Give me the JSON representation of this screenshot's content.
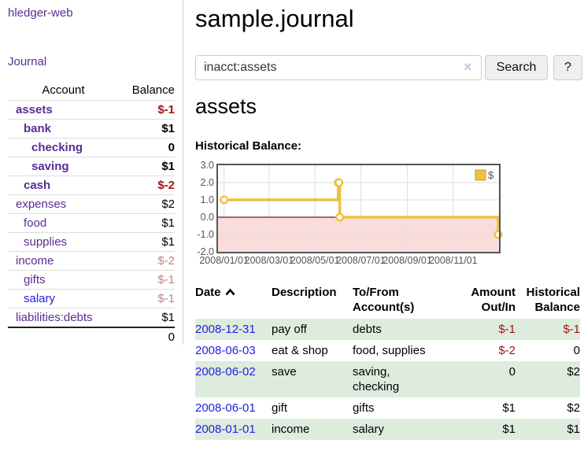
{
  "colors": {
    "link_purple": "#5a2d91",
    "link_blue": "#2222dd",
    "negative_strong": "#a21313",
    "negative_soft": "#c28383",
    "row_highlight_green": "#deecde",
    "chart_line_yellow": "#edc240"
  },
  "sidebar": {
    "app_title": "hledger-web",
    "journal_link": "Journal",
    "account_header": "Account",
    "balance_header": "Balance",
    "accounts": [
      {
        "name": "assets",
        "balance": "$-1"
      },
      {
        "name": "bank",
        "balance": "$1"
      },
      {
        "name": "checking",
        "balance": "0"
      },
      {
        "name": "saving",
        "balance": "$1"
      },
      {
        "name": "cash",
        "balance": "$-2"
      },
      {
        "name": "expenses",
        "balance": "$2"
      },
      {
        "name": "food",
        "balance": "$1"
      },
      {
        "name": "supplies",
        "balance": "$1"
      },
      {
        "name": "income",
        "balance": "$-2"
      },
      {
        "name": "gifts",
        "balance": "$-1"
      },
      {
        "name": "salary",
        "balance": "$-1"
      },
      {
        "name": "liabilities:debts",
        "balance": "$1"
      }
    ],
    "total": "0"
  },
  "main": {
    "title": "sample.journal",
    "search": {
      "value": "inacct:assets",
      "clear_label": "×",
      "search_button": "Search",
      "help_button": "?"
    },
    "account_heading": "assets",
    "section_label": "Historical Balance:"
  },
  "chart_data": {
    "type": "line",
    "style": "step",
    "title": "Historical Balance of assets",
    "series": [
      {
        "name": "$",
        "color": "#edc240",
        "points": [
          {
            "date": "2008/01/01",
            "value": 1
          },
          {
            "date": "2008/06/01",
            "value": 2
          },
          {
            "date": "2008/06/02",
            "value": 2
          },
          {
            "date": "2008/06/03",
            "value": 0
          },
          {
            "date": "2008/12/31",
            "value": -1
          }
        ]
      }
    ],
    "x_ticks": [
      "2008/01/01",
      "2008/03/01",
      "2008/05/01",
      "2008/07/01",
      "2008/09/01",
      "2008/11/01"
    ],
    "y_ticks": [
      "3.0",
      "2.0",
      "1.0",
      "0.0",
      "-1.0",
      "-2.0"
    ],
    "xlim": [
      "2007/12/24",
      "2009/01/01"
    ],
    "ylim": [
      -2,
      3
    ],
    "grid": true,
    "negative_region_color": "#fadcdc",
    "zero_line_color": "#8b1010",
    "legend": {
      "label": "$",
      "position": "top-right"
    }
  },
  "register": {
    "headers": {
      "date": "Date",
      "description": "Description",
      "account_line1": "To/From",
      "account_line2": "Account(s)",
      "amount_line1": "Amount",
      "amount_line2": "Out/In",
      "balance_line1": "Historical",
      "balance_line2": "Balance"
    },
    "rows": [
      {
        "date": "2008-12-31",
        "description": "pay off",
        "accounts": [
          "debts"
        ],
        "amount": "$-1",
        "balance": "$-1"
      },
      {
        "date": "2008-06-03",
        "description": "eat & shop",
        "accounts": [
          "food, supplies"
        ],
        "amount": "$-2",
        "balance": "0"
      },
      {
        "date": "2008-06-02",
        "description": "save",
        "accounts": [
          "saving,",
          "checking"
        ],
        "amount": "0",
        "balance": "$2"
      },
      {
        "date": "2008-06-01",
        "description": "gift",
        "accounts": [
          "gifts"
        ],
        "amount": "$1",
        "balance": "$2"
      },
      {
        "date": "2008-01-01",
        "description": "income",
        "accounts": [
          "salary"
        ],
        "amount": "$1",
        "balance": "$1"
      }
    ]
  }
}
